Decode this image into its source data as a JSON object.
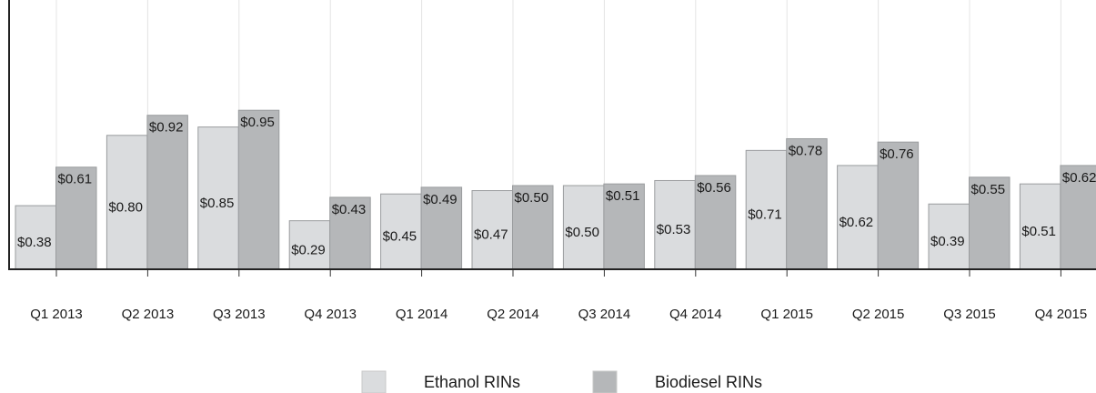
{
  "chart_data": {
    "type": "bar",
    "categories": [
      "Q1 2013",
      "Q2 2013",
      "Q3 2013",
      "Q4 2013",
      "Q1 2014",
      "Q2 2014",
      "Q3 2014",
      "Q4 2014",
      "Q1 2015",
      "Q2 2015",
      "Q3 2015",
      "Q4 2015"
    ],
    "series": [
      {
        "name": "Ethanol RINs",
        "color": "#dadcde",
        "values": [
          0.38,
          0.8,
          0.85,
          0.29,
          0.45,
          0.47,
          0.5,
          0.53,
          0.71,
          0.62,
          0.39,
          0.51
        ],
        "value_labels": [
          "$0.38",
          "$0.80",
          "$0.85",
          "$0.29",
          "$0.45",
          "$0.47",
          "$0.50",
          "$0.53",
          "$0.71",
          "$0.62",
          "$0.39",
          "$0.51"
        ]
      },
      {
        "name": "Biodiesel RINs",
        "color": "#b5b7b9",
        "values": [
          0.61,
          0.92,
          0.95,
          0.43,
          0.49,
          0.5,
          0.51,
          0.56,
          0.78,
          0.76,
          0.55,
          0.62
        ],
        "value_labels": [
          "$0.61",
          "$0.92",
          "$0.95",
          "$0.43",
          "$0.49",
          "$0.50",
          "$0.51",
          "$0.56",
          "$0.78",
          "$0.76",
          "$0.55",
          "$0.62"
        ]
      }
    ],
    "ylim": [
      0,
      1
    ],
    "grid": true,
    "legend": "bottom"
  }
}
